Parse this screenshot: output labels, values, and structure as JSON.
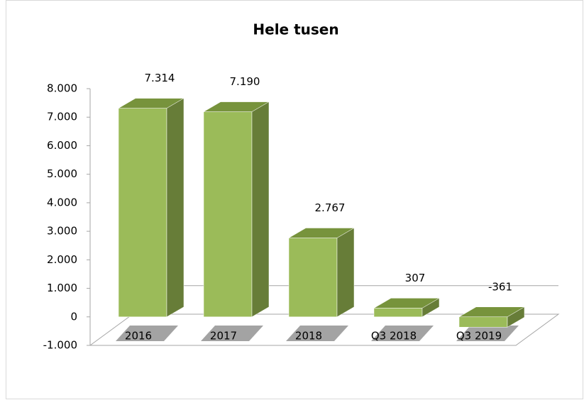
{
  "chart_data": {
    "type": "bar3d",
    "title": "Hele tusen",
    "categories": [
      "2016",
      "2017",
      "2018",
      "Q3 2018",
      "Q3 2019"
    ],
    "values": [
      7314,
      7190,
      2767,
      307,
      -361
    ],
    "value_labels": [
      "7.314",
      "7.190",
      "2.767",
      "307",
      "-361"
    ],
    "color": "#9bbb59",
    "ylim": [
      -1000,
      8000
    ],
    "yticks": [
      {
        "value": -1000,
        "label": "-1.000"
      },
      0,
      {
        "value": 1000,
        "label": "1.000"
      },
      {
        "value": 2000,
        "label": "2.000"
      },
      {
        "value": 3000,
        "label": "3.000"
      },
      {
        "value": 4000,
        "label": "4.000"
      },
      {
        "value": 5000,
        "label": "5.000"
      },
      {
        "value": 6000,
        "label": "6.000"
      },
      {
        "value": 7000,
        "label": "7.000"
      },
      {
        "value": 8000,
        "label": "8.000"
      }
    ]
  }
}
